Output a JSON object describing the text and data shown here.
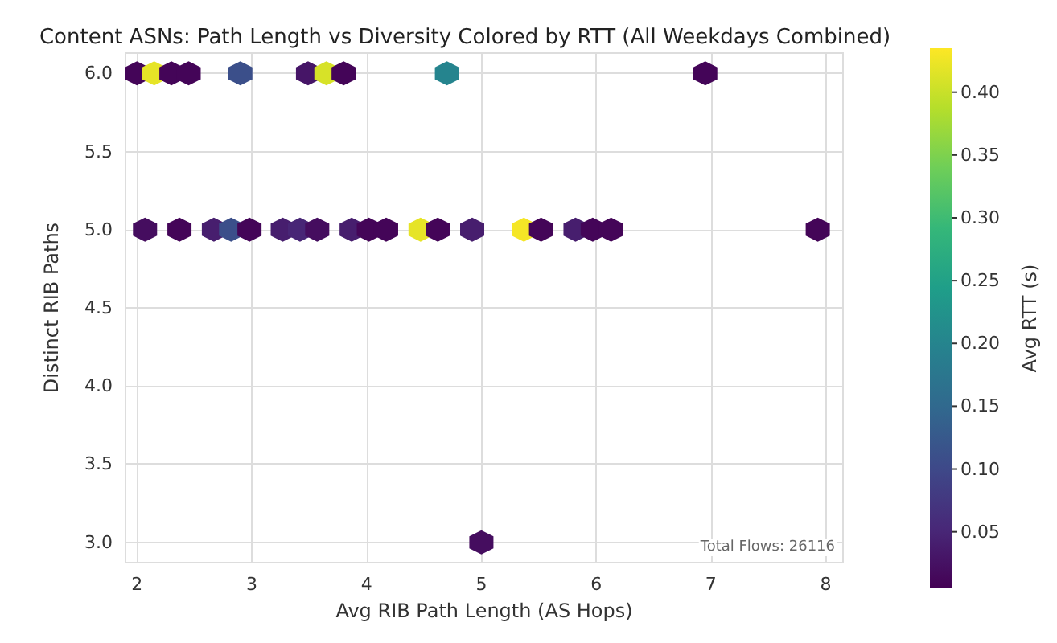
{
  "chart_data": {
    "type": "scatter",
    "title": "Content ASNs: Path Length vs Diversity Colored by RTT (All Weekdays Combined)",
    "xlabel": "Avg RIB Path Length (AS Hops)",
    "ylabel": "Distinct RIB Paths",
    "clabel": "Avg RTT (s)",
    "x": [
      2.0,
      2.15,
      2.3,
      2.45,
      2.9,
      3.49,
      3.65,
      3.8,
      4.7,
      6.95,
      2.07,
      2.37,
      2.67,
      2.82,
      2.98,
      3.27,
      3.42,
      3.57,
      3.87,
      4.02,
      4.17,
      4.47,
      4.62,
      4.92,
      5.37,
      5.52,
      5.82,
      5.97,
      6.13,
      7.93,
      5.0
    ],
    "values": [
      6,
      6,
      6,
      6,
      6,
      6,
      6,
      6,
      6,
      6,
      5,
      5,
      5,
      5,
      5,
      5,
      5,
      5,
      5,
      5,
      5,
      5,
      5,
      5,
      5,
      5,
      5,
      5,
      5,
      5,
      3
    ],
    "cvalues": [
      0.01,
      0.42,
      0.01,
      0.01,
      0.11,
      0.03,
      0.41,
      0.01,
      0.2,
      0.01,
      0.02,
      0.01,
      0.04,
      0.11,
      0.01,
      0.04,
      0.05,
      0.02,
      0.04,
      0.01,
      0.01,
      0.42,
      0.01,
      0.04,
      0.43,
      0.01,
      0.04,
      0.01,
      0.01,
      0.01,
      0.02
    ],
    "xlim": [
      1.9,
      8.15
    ],
    "xticks": [
      2,
      3,
      4,
      5,
      6,
      7,
      8
    ],
    "ylim": [
      2.87,
      6.13
    ],
    "yticks": [
      {
        "value": 3,
        "label": "3.0"
      },
      3.5,
      {
        "value": 4,
        "label": "4.0"
      },
      4.5,
      {
        "value": 5,
        "label": "5.0"
      },
      5.5,
      {
        "value": 6,
        "label": "6.0"
      }
    ],
    "clim": [
      0.005,
      0.435
    ],
    "cticks": [
      0.05,
      {
        "value": 0.1,
        "label": "0.10"
      },
      0.15,
      {
        "value": 0.2,
        "label": "0.20"
      },
      0.25,
      {
        "value": 0.3,
        "label": "0.30"
      },
      0.35,
      {
        "value": 0.4,
        "label": "0.40"
      }
    ],
    "grid": true,
    "annotations": [
      "Total Flows: 26116"
    ]
  }
}
